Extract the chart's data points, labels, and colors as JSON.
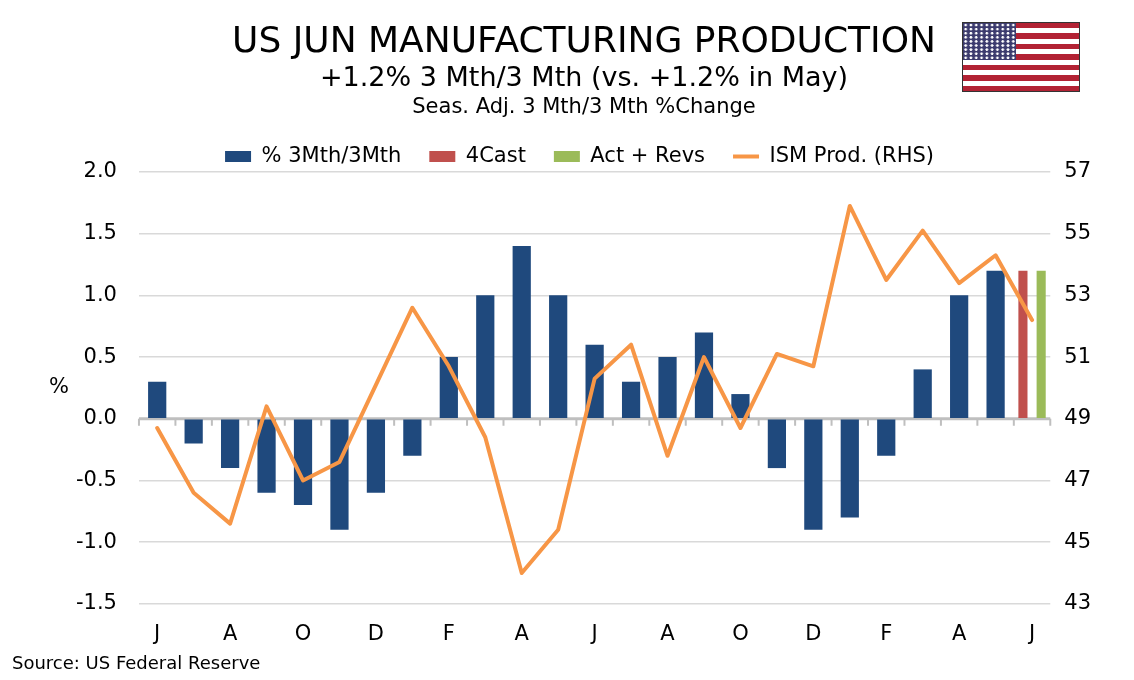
{
  "chart_data": {
    "type": "bar",
    "title": "US JUN MANUFACTURING PRODUCTION",
    "subtitle": "+1.2% 3 Mth/3 Mth (vs. +1.2% in May)\nSeas. Adj. 3 Mth/3 Mth %Change",
    "ylabel": "%",
    "annotations": [
      "Source: US Federal Reserve"
    ],
    "categories": [
      "J",
      null,
      "A",
      null,
      "O",
      null,
      "D",
      null,
      "F",
      null,
      "A",
      null,
      "J",
      null,
      "A",
      null,
      "O",
      null,
      "D",
      null,
      "F",
      null,
      "A",
      null,
      "J"
    ],
    "series": [
      {
        "name": "% 3Mth/3Mth",
        "color": "#1f497d",
        "values": [
          0.3,
          -0.2,
          -0.4,
          -0.6,
          -0.7,
          -0.9,
          -0.6,
          -0.3,
          0.5,
          1.0,
          1.4,
          1.0,
          0.6,
          0.3,
          0.5,
          0.7,
          0.2,
          -0.4,
          -0.9,
          -0.8,
          -0.3,
          0.4,
          1.0,
          1.2,
          null
        ]
      },
      {
        "name": "4Cast",
        "color": "#c0504d",
        "values": [
          null,
          null,
          null,
          null,
          null,
          null,
          null,
          null,
          null,
          null,
          null,
          null,
          null,
          null,
          null,
          null,
          null,
          null,
          null,
          null,
          null,
          null,
          null,
          null,
          1.2
        ]
      },
      {
        "name": "Act + Revs",
        "color": "#9bbb59",
        "values": [
          null,
          null,
          null,
          null,
          null,
          null,
          null,
          null,
          null,
          null,
          null,
          null,
          null,
          null,
          null,
          null,
          null,
          null,
          null,
          null,
          null,
          null,
          null,
          null,
          1.2
        ]
      },
      {
        "name": "ISM Prod. (RHS)",
        "type": "line",
        "axis": "y2",
        "color": "#f79646",
        "values": [
          48.7,
          46.6,
          45.6,
          49.4,
          47.0,
          47.6,
          50.1,
          52.6,
          50.7,
          48.4,
          44.0,
          45.4,
          50.3,
          51.4,
          47.8,
          51.0,
          48.7,
          51.1,
          50.7,
          55.9,
          53.5,
          55.1,
          53.4,
          54.3,
          52.2
        ]
      }
    ],
    "ylim": [
      -1.5,
      2
    ],
    "yticks": [
      -1.5,
      {
        "value": -1,
        "label": "-1.0"
      },
      -0.5,
      {
        "value": 0,
        "label": "0.0"
      },
      0.5,
      {
        "value": 1,
        "label": "1.0"
      },
      1.5,
      {
        "value": 2,
        "label": "2.0"
      }
    ],
    "y2lim": [
      43,
      57
    ],
    "y2ticks": [
      43,
      45,
      47,
      49,
      51,
      53,
      55,
      57
    ],
    "grid": "y",
    "legend": "top",
    "marker": "none",
    "line_style": "solid"
  }
}
